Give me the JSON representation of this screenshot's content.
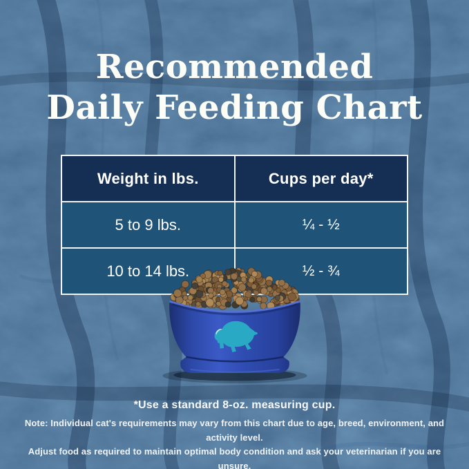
{
  "title": {
    "line1": "Recommended",
    "line2": "Daily Feeding Chart"
  },
  "table": {
    "col1_header": "Weight in lbs.",
    "col2_header": "Cups per day*",
    "rows": [
      {
        "weight": "5 to 9 lbs.",
        "cups": "¼ - ½"
      },
      {
        "weight": "10 to 14 lbs.",
        "cups": "½ - ¾"
      }
    ]
  },
  "footnote": "*Use a standard 8-oz. measuring cup.",
  "note": {
    "line1": "Note: Individual cat's requirements may vary from this chart due to age, breed, environment, and activity level.",
    "line2": "Adjust food as required to maintain optimal body condition and ask your veterinarian if you are unsure."
  },
  "bowl": {
    "logo_icon": "buffalo-icon",
    "contents": "dry kibble"
  },
  "colors": {
    "background_navy": "#14335c",
    "table_header_bg": "#142f53",
    "table_row_bg": "#1f5377",
    "table_border": "#f2f4f6",
    "bowl_blue": "#2c4bae",
    "buffalo_teal": "#2aa9c4",
    "kibble_brown": "#93714a",
    "text_white": "#ffffff"
  },
  "chart_data": {
    "type": "table",
    "title": "Recommended Daily Feeding Chart",
    "columns": [
      "Weight in lbs.",
      "Cups per day*"
    ],
    "rows": [
      [
        "5 to 9 lbs.",
        "¼ - ½"
      ],
      [
        "10 to 14 lbs.",
        "½ - ¾"
      ]
    ],
    "footnote": "*Use a standard 8-oz. measuring cup.",
    "note": "Note: Individual cat's requirements may vary from this chart due to age, breed, environment, and activity level. Adjust food as required to maintain optimal body condition and ask your veterinarian if you are unsure."
  }
}
